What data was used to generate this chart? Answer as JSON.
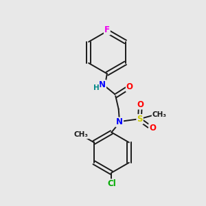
{
  "background_color": "#e8e8e8",
  "bond_color": "#1a1a1a",
  "bond_width": 1.4,
  "atom_colors": {
    "F": "#ee00ee",
    "N": "#0000ff",
    "O": "#ff0000",
    "S": "#cccc00",
    "Cl": "#00aa00",
    "C": "#1a1a1a",
    "H": "#008888"
  },
  "font_size": 8.5,
  "figsize": [
    3.0,
    3.0
  ],
  "dpi": 100
}
